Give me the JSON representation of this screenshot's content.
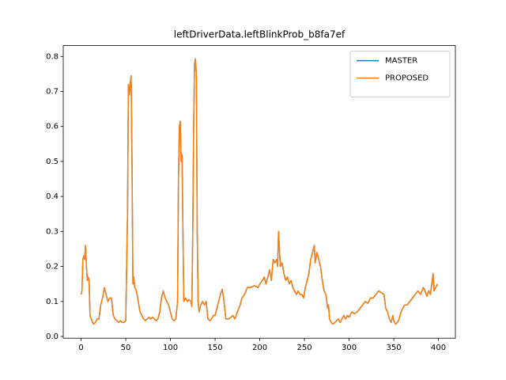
{
  "chart_data": {
    "type": "line",
    "title": "leftDriverData.leftBlinkProb_b8fa7ef",
    "x": [
      0,
      1,
      2,
      3,
      4,
      5,
      6,
      7,
      8,
      9,
      10,
      12,
      14,
      16,
      18,
      20,
      22,
      24,
      26,
      28,
      30,
      32,
      34,
      36,
      38,
      40,
      42,
      44,
      46,
      48,
      50,
      52,
      53,
      54,
      55,
      56,
      57,
      58,
      59,
      60,
      62,
      64,
      66,
      68,
      70,
      72,
      74,
      76,
      78,
      80,
      82,
      84,
      86,
      88,
      90,
      92,
      94,
      96,
      98,
      100,
      102,
      104,
      106,
      108,
      109,
      110,
      111,
      112,
      113,
      114,
      115,
      117,
      119,
      121,
      123,
      124,
      125,
      126,
      127,
      128,
      129,
      130,
      131,
      132,
      134,
      136,
      138,
      140,
      142,
      144,
      146,
      148,
      150,
      152,
      154,
      156,
      158,
      160,
      162,
      165,
      168,
      170,
      172,
      175,
      178,
      180,
      183,
      186,
      190,
      194,
      198,
      200,
      203,
      205,
      207,
      209,
      211,
      213,
      215,
      217,
      219,
      220,
      221,
      222,
      223,
      225,
      227,
      229,
      231,
      233,
      235,
      237,
      239,
      241,
      243,
      245,
      247,
      249,
      251,
      253,
      255,
      257,
      259,
      261,
      262,
      264,
      266,
      268,
      270,
      272,
      274,
      276,
      277,
      278,
      280,
      282,
      284,
      286,
      288,
      290,
      292,
      294,
      296,
      298,
      300,
      303,
      306,
      309,
      312,
      315,
      318,
      321,
      324,
      327,
      330,
      333,
      336,
      339,
      341,
      343,
      345,
      347,
      349,
      350,
      352,
      354,
      356,
      358,
      360,
      362,
      365,
      368,
      371,
      374,
      377,
      380,
      383,
      385,
      387,
      389,
      391,
      393,
      394,
      395,
      397,
      399
    ],
    "series": [
      {
        "name": "MASTER",
        "color": "#1f77b4",
        "values": [
          0.12,
          0.13,
          0.22,
          0.23,
          0.22,
          0.26,
          0.2,
          0.16,
          0.17,
          0.16,
          0.06,
          0.045,
          0.035,
          0.04,
          0.05,
          0.05,
          0.09,
          0.11,
          0.14,
          0.12,
          0.1,
          0.11,
          0.11,
          0.06,
          0.05,
          0.045,
          0.04,
          0.045,
          0.04,
          0.04,
          0.045,
          0.35,
          0.72,
          0.69,
          0.72,
          0.745,
          0.5,
          0.15,
          0.17,
          0.14,
          0.13,
          0.1,
          0.07,
          0.06,
          0.05,
          0.045,
          0.05,
          0.055,
          0.05,
          0.055,
          0.05,
          0.045,
          0.05,
          0.07,
          0.11,
          0.13,
          0.11,
          0.1,
          0.09,
          0.07,
          0.05,
          0.045,
          0.05,
          0.1,
          0.45,
          0.6,
          0.615,
          0.5,
          0.52,
          0.3,
          0.1,
          0.11,
          0.1,
          0.105,
          0.1,
          0.085,
          0.3,
          0.6,
          0.78,
          0.793,
          0.75,
          0.3,
          0.1,
          0.07,
          0.09,
          0.1,
          0.09,
          0.1,
          0.05,
          0.045,
          0.05,
          0.06,
          0.06,
          0.08,
          0.1,
          0.12,
          0.135,
          0.1,
          0.05,
          0.05,
          0.055,
          0.06,
          0.05,
          0.07,
          0.09,
          0.11,
          0.12,
          0.14,
          0.14,
          0.145,
          0.14,
          0.15,
          0.16,
          0.17,
          0.15,
          0.17,
          0.19,
          0.16,
          0.22,
          0.21,
          0.22,
          0.2,
          0.3,
          0.25,
          0.2,
          0.21,
          0.18,
          0.16,
          0.17,
          0.15,
          0.16,
          0.14,
          0.13,
          0.12,
          0.13,
          0.12,
          0.12,
          0.11,
          0.14,
          0.16,
          0.18,
          0.22,
          0.24,
          0.26,
          0.21,
          0.24,
          0.22,
          0.2,
          0.16,
          0.13,
          0.12,
          0.08,
          0.09,
          0.05,
          0.04,
          0.035,
          0.04,
          0.045,
          0.05,
          0.04,
          0.05,
          0.06,
          0.05,
          0.06,
          0.055,
          0.07,
          0.065,
          0.07,
          0.08,
          0.09,
          0.1,
          0.095,
          0.11,
          0.11,
          0.12,
          0.13,
          0.125,
          0.12,
          0.08,
          0.07,
          0.05,
          0.04,
          0.06,
          0.045,
          0.035,
          0.04,
          0.05,
          0.07,
          0.08,
          0.09,
          0.09,
          0.1,
          0.11,
          0.12,
          0.13,
          0.12,
          0.14,
          0.13,
          0.115,
          0.13,
          0.12,
          0.16,
          0.18,
          0.13,
          0.14,
          0.15
        ]
      },
      {
        "name": "PROPOSED",
        "color": "#ff7f0e",
        "values": [
          0.12,
          0.13,
          0.22,
          0.23,
          0.22,
          0.26,
          0.2,
          0.16,
          0.17,
          0.16,
          0.06,
          0.045,
          0.035,
          0.04,
          0.05,
          0.05,
          0.09,
          0.11,
          0.14,
          0.12,
          0.1,
          0.11,
          0.11,
          0.06,
          0.05,
          0.045,
          0.04,
          0.045,
          0.04,
          0.04,
          0.045,
          0.35,
          0.72,
          0.69,
          0.72,
          0.745,
          0.5,
          0.15,
          0.17,
          0.14,
          0.13,
          0.1,
          0.07,
          0.06,
          0.05,
          0.045,
          0.05,
          0.055,
          0.05,
          0.055,
          0.05,
          0.045,
          0.05,
          0.07,
          0.11,
          0.13,
          0.11,
          0.1,
          0.09,
          0.07,
          0.05,
          0.045,
          0.05,
          0.1,
          0.45,
          0.6,
          0.615,
          0.5,
          0.52,
          0.3,
          0.1,
          0.11,
          0.1,
          0.105,
          0.1,
          0.085,
          0.3,
          0.6,
          0.78,
          0.793,
          0.75,
          0.3,
          0.1,
          0.07,
          0.09,
          0.1,
          0.09,
          0.1,
          0.05,
          0.045,
          0.05,
          0.06,
          0.06,
          0.08,
          0.1,
          0.12,
          0.135,
          0.1,
          0.05,
          0.05,
          0.055,
          0.06,
          0.05,
          0.07,
          0.09,
          0.11,
          0.12,
          0.14,
          0.14,
          0.145,
          0.14,
          0.15,
          0.16,
          0.17,
          0.15,
          0.17,
          0.19,
          0.16,
          0.22,
          0.21,
          0.22,
          0.2,
          0.3,
          0.25,
          0.2,
          0.21,
          0.18,
          0.16,
          0.17,
          0.15,
          0.16,
          0.14,
          0.13,
          0.12,
          0.13,
          0.12,
          0.12,
          0.11,
          0.14,
          0.16,
          0.18,
          0.22,
          0.24,
          0.26,
          0.21,
          0.24,
          0.22,
          0.2,
          0.16,
          0.13,
          0.12,
          0.08,
          0.09,
          0.05,
          0.04,
          0.035,
          0.04,
          0.045,
          0.05,
          0.04,
          0.05,
          0.06,
          0.05,
          0.06,
          0.055,
          0.07,
          0.065,
          0.07,
          0.08,
          0.09,
          0.1,
          0.095,
          0.11,
          0.11,
          0.12,
          0.13,
          0.125,
          0.12,
          0.08,
          0.07,
          0.05,
          0.04,
          0.06,
          0.045,
          0.035,
          0.04,
          0.05,
          0.07,
          0.08,
          0.09,
          0.09,
          0.1,
          0.11,
          0.12,
          0.13,
          0.12,
          0.14,
          0.13,
          0.115,
          0.13,
          0.12,
          0.16,
          0.18,
          0.13,
          0.14,
          0.15
        ]
      }
    ],
    "xlim": [
      -19.95,
      418.95
    ],
    "xticks": [
      0,
      50,
      100,
      150,
      200,
      250,
      300,
      350,
      400
    ],
    "ylim": [
      -0.005,
      0.831
    ],
    "yticks": [
      {
        "value": 0,
        "label": "0.0"
      },
      0.1,
      0.2,
      0.3,
      0.4,
      0.5,
      0.6,
      0.7,
      0.8
    ],
    "legend": "upper right"
  }
}
